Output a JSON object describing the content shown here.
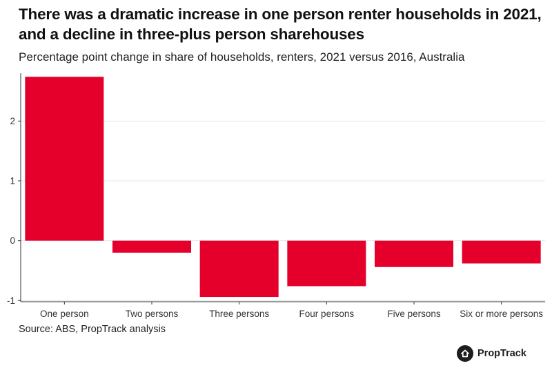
{
  "header": {
    "title": "There was a dramatic increase in one person renter households in 2021, and a decline in three-plus person sharehouses",
    "subtitle": "Percentage point change in share of households, renters, 2021 versus 2016, Australia"
  },
  "chart_data": {
    "type": "bar",
    "categories": [
      "One person",
      "Two persons",
      "Three persons",
      "Four persons",
      "Five persons",
      "Six or more persons"
    ],
    "values": [
      2.74,
      -0.2,
      -0.94,
      -0.76,
      -0.44,
      -0.38
    ],
    "yticks": [
      -1,
      0,
      1,
      2
    ],
    "ylim": [
      -1.02,
      2.8
    ],
    "xlabel": "",
    "ylabel": "",
    "grid": "horizontal",
    "bar_color": "#e4002b"
  },
  "footer": {
    "source": "Source: ABS, PropTrack analysis",
    "logo_text": "PropTrack",
    "logo_icon": "proptrack-house-icon"
  }
}
